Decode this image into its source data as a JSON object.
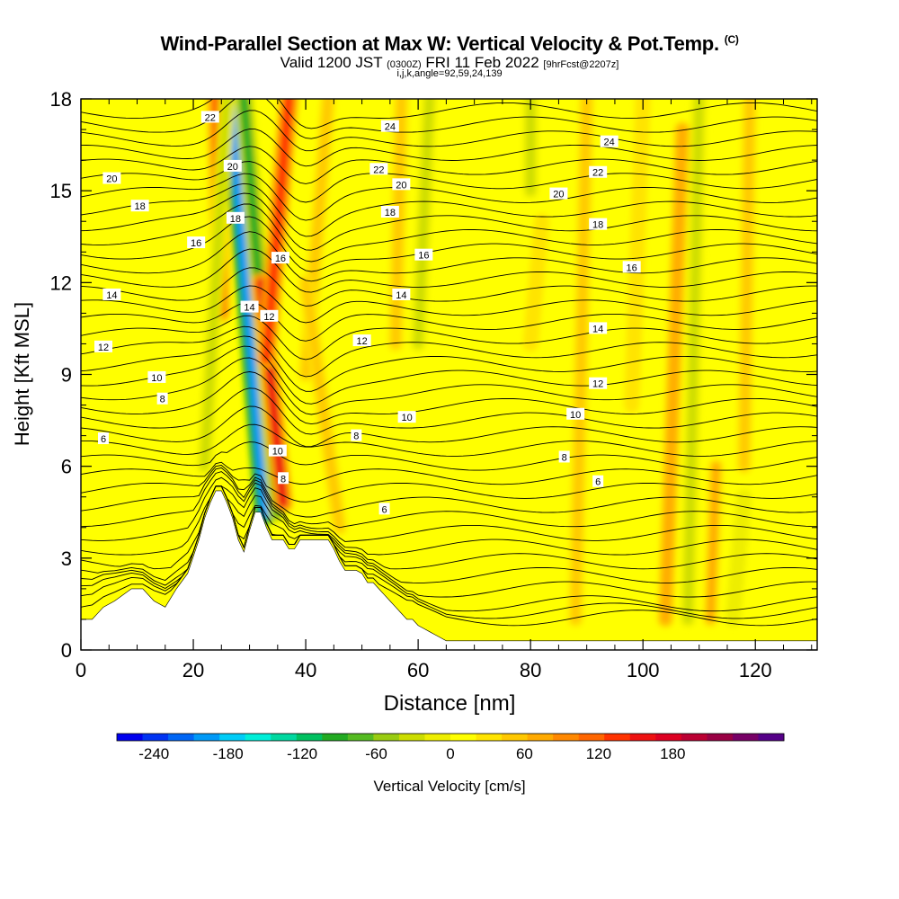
{
  "header": {
    "title": "Wind-Parallel Section at Max W: Vertical Velocity & Pot.Temp.",
    "copyright": "(C)",
    "valid_prefix": "Valid 1200 JST",
    "valid_zulu": "(0300Z)",
    "valid_date": "FRI 11 Feb 2022",
    "forecast": "[9hrFcst@2207z]",
    "indices": "i,j,k,angle=92,59,24,139"
  },
  "chart_data": {
    "type": "heatmap",
    "xlabel": "Distance [nm]",
    "ylabel": "Height [Kft MSL]",
    "xlim": [
      0,
      131
    ],
    "ylim": [
      0,
      18
    ],
    "x_ticks": [
      0,
      20,
      40,
      60,
      80,
      100,
      120
    ],
    "y_ticks": [
      0,
      3,
      6,
      9,
      12,
      15,
      18
    ],
    "colorbar": {
      "label": "Vertical Velocity [cm/s]",
      "range": [
        -270,
        270
      ],
      "step": 20,
      "tick_labels": [
        -240,
        -180,
        -120,
        -60,
        0,
        60,
        120,
        180
      ],
      "colors": [
        "#0000ee",
        "#0033f2",
        "#0066f5",
        "#0099f7",
        "#00ccf7",
        "#00eed8",
        "#00d8a0",
        "#00c060",
        "#22aa22",
        "#55bb22",
        "#99cc11",
        "#ccdd00",
        "#eeee00",
        "#ffff00",
        "#ffe400",
        "#ffc800",
        "#ffaa00",
        "#ff8800",
        "#ff6600",
        "#ff3300",
        "#ee1111",
        "#dd0022",
        "#bb0033",
        "#990044",
        "#770066",
        "#550088"
      ]
    },
    "terrain_profile": {
      "x": [
        0,
        2,
        4,
        6,
        9,
        11,
        13,
        15,
        17,
        19,
        21,
        22,
        23,
        24,
        25,
        26,
        27,
        28,
        29,
        30,
        31,
        32,
        33,
        34,
        35,
        36,
        37,
        38,
        39,
        40,
        41,
        42,
        43,
        44,
        45,
        46,
        47,
        48,
        49,
        50,
        51,
        52,
        53,
        54,
        55,
        56,
        57,
        58,
        59,
        60,
        61,
        62,
        63,
        64,
        65,
        66,
        68,
        70,
        72,
        74,
        76,
        78,
        80,
        90,
        100,
        110,
        120,
        131
      ],
      "height_kft": [
        1.0,
        1.0,
        1.4,
        1.6,
        2.0,
        2.0,
        1.6,
        1.4,
        2.0,
        2.5,
        3.6,
        4.3,
        4.8,
        5.2,
        5.2,
        4.8,
        4.3,
        3.6,
        3.2,
        3.9,
        4.5,
        4.5,
        4.0,
        3.6,
        3.6,
        3.6,
        3.3,
        3.3,
        3.6,
        3.6,
        3.6,
        3.6,
        3.6,
        3.6,
        3.3,
        2.9,
        2.6,
        2.6,
        2.6,
        2.5,
        2.2,
        2.2,
        2.0,
        1.8,
        1.6,
        1.4,
        1.2,
        1.0,
        1.0,
        0.8,
        0.7,
        0.6,
        0.5,
        0.4,
        0.3,
        0.3,
        0.3,
        0.3,
        0.3,
        0.3,
        0.3,
        0.3,
        0.3,
        0.3,
        0.3,
        0.3,
        0.3,
        0.3
      ]
    },
    "velocity_features": [
      {
        "x_bottom": 33,
        "y_bottom": 4.5,
        "x_top": 27,
        "y_top": 18,
        "value": -200
      },
      {
        "x_bottom": 35,
        "y_bottom": 4.5,
        "x_top": 29,
        "y_top": 18,
        "value": -100
      },
      {
        "x_bottom": 36,
        "y_bottom": 4.8,
        "x_top": 32,
        "y_top": 12,
        "value": 130
      },
      {
        "x_bottom": 33,
        "y_bottom": 9.5,
        "x_top": 37,
        "y_top": 18,
        "value": 110
      },
      {
        "x_bottom": 25,
        "y_bottom": 11,
        "x_top": 24,
        "y_top": 18,
        "value": 90
      },
      {
        "x_bottom": 22,
        "y_bottom": 6,
        "x_top": 26,
        "y_top": 18,
        "value": -40
      },
      {
        "x_bottom": 40,
        "y_bottom": 9,
        "x_top": 44,
        "y_top": 18,
        "value": 40
      },
      {
        "x_bottom": 46,
        "y_bottom": 4,
        "x_top": 40,
        "y_top": 12,
        "value": 40
      },
      {
        "x_bottom": 60,
        "y_bottom": 10,
        "x_top": 62,
        "y_top": 18,
        "value": -40
      },
      {
        "x_bottom": 56,
        "y_bottom": 10,
        "x_top": 57,
        "y_top": 18,
        "value": 40
      },
      {
        "x_bottom": 80,
        "y_bottom": 15,
        "x_top": 80,
        "y_top": 18,
        "value": -40
      },
      {
        "x_bottom": 80,
        "y_bottom": 10,
        "x_top": 82,
        "y_top": 14,
        "value": 20
      },
      {
        "x_bottom": 88,
        "y_bottom": 1,
        "x_top": 90,
        "y_top": 18,
        "value": 30
      },
      {
        "x_bottom": 98,
        "y_bottom": 8,
        "x_top": 100,
        "y_top": 18,
        "value": 20
      },
      {
        "x_bottom": 104,
        "y_bottom": 1,
        "x_top": 107,
        "y_top": 17,
        "value": 60
      },
      {
        "x_bottom": 108,
        "y_bottom": 1,
        "x_top": 110,
        "y_top": 18,
        "value": -50
      },
      {
        "x_bottom": 112,
        "y_bottom": 1,
        "x_top": 113,
        "y_top": 6,
        "value": 50
      },
      {
        "x_bottom": 116,
        "y_bottom": 1,
        "x_top": 118,
        "y_top": 5,
        "value": -30
      },
      {
        "x_bottom": 118,
        "y_bottom": 6,
        "x_top": 119,
        "y_top": 18,
        "value": 30
      }
    ],
    "contour_labels": [
      {
        "text": "22",
        "x": 23,
        "y": 17.4
      },
      {
        "text": "20",
        "x": 27,
        "y": 15.8
      },
      {
        "text": "18",
        "x": 27.5,
        "y": 14.1
      },
      {
        "text": "16",
        "x": 20.5,
        "y": 13.3
      },
      {
        "text": "16",
        "x": 35.5,
        "y": 12.8
      },
      {
        "text": "14",
        "x": 30,
        "y": 11.2
      },
      {
        "text": "12",
        "x": 33.5,
        "y": 10.9
      },
      {
        "text": "10",
        "x": 35,
        "y": 6.5
      },
      {
        "text": "8",
        "x": 36,
        "y": 5.6
      },
      {
        "text": "20",
        "x": 5.5,
        "y": 15.4
      },
      {
        "text": "18",
        "x": 10.5,
        "y": 14.5
      },
      {
        "text": "14",
        "x": 5.5,
        "y": 11.6
      },
      {
        "text": "12",
        "x": 4,
        "y": 9.9
      },
      {
        "text": "10",
        "x": 13.5,
        "y": 8.9
      },
      {
        "text": "8",
        "x": 14.5,
        "y": 8.2
      },
      {
        "text": "6",
        "x": 4,
        "y": 6.9
      },
      {
        "text": "24",
        "x": 55,
        "y": 17.1
      },
      {
        "text": "22",
        "x": 53,
        "y": 15.7
      },
      {
        "text": "20",
        "x": 57,
        "y": 15.2
      },
      {
        "text": "18",
        "x": 55,
        "y": 14.3
      },
      {
        "text": "16",
        "x": 61,
        "y": 12.9
      },
      {
        "text": "14",
        "x": 57,
        "y": 11.6
      },
      {
        "text": "12",
        "x": 50,
        "y": 10.1
      },
      {
        "text": "10",
        "x": 58,
        "y": 7.6
      },
      {
        "text": "8",
        "x": 49,
        "y": 7.0
      },
      {
        "text": "6",
        "x": 54,
        "y": 4.6
      },
      {
        "text": "24",
        "x": 94,
        "y": 16.6
      },
      {
        "text": "22",
        "x": 92,
        "y": 15.6
      },
      {
        "text": "20",
        "x": 85,
        "y": 14.9
      },
      {
        "text": "18",
        "x": 92,
        "y": 13.9
      },
      {
        "text": "16",
        "x": 98,
        "y": 12.5
      },
      {
        "text": "14",
        "x": 92,
        "y": 10.5
      },
      {
        "text": "12",
        "x": 92,
        "y": 8.7
      },
      {
        "text": "10",
        "x": 88,
        "y": 7.7
      },
      {
        "text": "8",
        "x": 86,
        "y": 6.3
      },
      {
        "text": "6",
        "x": 92,
        "y": 5.5
      }
    ]
  }
}
